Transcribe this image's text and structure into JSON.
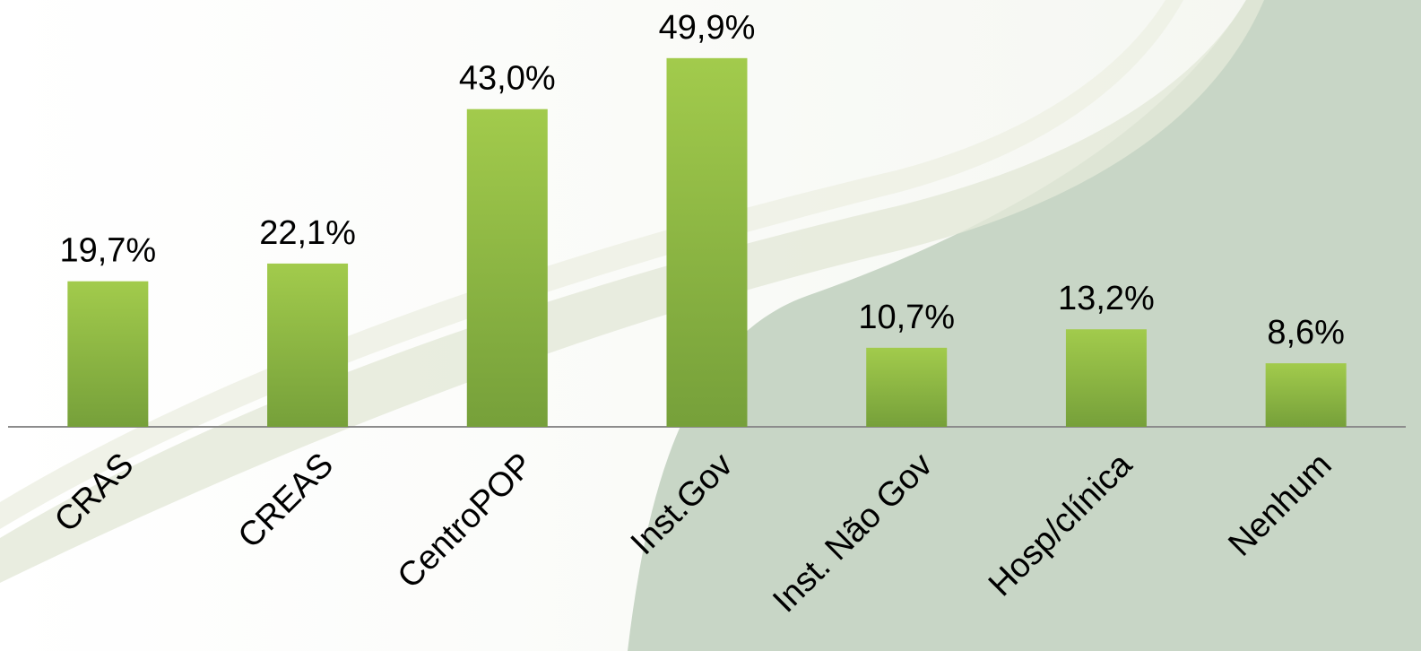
{
  "chart_data": {
    "type": "bar",
    "categories": [
      "CRAS",
      "CREAS",
      "CentroPOP",
      "Inst.Gov",
      "Inst. Não Gov",
      "Hosp/clínica",
      "Nenhum"
    ],
    "values": [
      19.7,
      22.1,
      43.0,
      49.9,
      10.7,
      13.2,
      8.6
    ],
    "value_labels": [
      "19,7%",
      "22,1%",
      "43,0%",
      "49,9%",
      "10,7%",
      "13,2%",
      "8,6%"
    ],
    "color": "#8db843"
  }
}
